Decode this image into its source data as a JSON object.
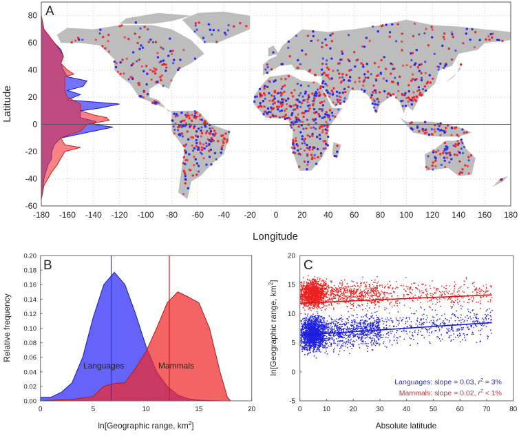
{
  "chart_data": [
    {
      "panel": "A",
      "type": "scatter",
      "xlabel": "Longitude",
      "ylabel": "Latitude",
      "xlim": [
        -180,
        180
      ],
      "ylim": [
        -60,
        90
      ],
      "xticks": [
        -180,
        -160,
        -140,
        -120,
        -100,
        -80,
        -60,
        -40,
        -20,
        0,
        20,
        40,
        60,
        80,
        100,
        120,
        140,
        160,
        180
      ],
      "yticks": [
        -60,
        -40,
        -20,
        0,
        20,
        40,
        60,
        80
      ],
      "grid": true,
      "colors": {
        "land": "#bdbdbd",
        "languages": "#2a2ae8",
        "mammals": "#ee2a2a"
      },
      "latitude_profiles": {
        "languages": [
          [
            80,
            -180
          ],
          [
            70,
            -178
          ],
          [
            60,
            -170
          ],
          [
            55,
            -165
          ],
          [
            50,
            -163
          ],
          [
            45,
            -165
          ],
          [
            40,
            -163
          ],
          [
            35,
            -160
          ],
          [
            32,
            -145
          ],
          [
            28,
            -148
          ],
          [
            25,
            -160
          ],
          [
            22,
            -150
          ],
          [
            18,
            -160
          ],
          [
            15,
            -120
          ],
          [
            12,
            -135
          ],
          [
            10,
            -150
          ],
          [
            5,
            -150
          ],
          [
            2,
            -138
          ],
          [
            0,
            -140
          ],
          [
            -2,
            -125
          ],
          [
            -5,
            -140
          ],
          [
            -8,
            -155
          ],
          [
            -10,
            -165
          ],
          [
            -15,
            -170
          ],
          [
            -20,
            -172
          ],
          [
            -25,
            -172
          ],
          [
            -30,
            -175
          ],
          [
            -40,
            -178
          ],
          [
            -50,
            -179
          ],
          [
            -55,
            -180
          ]
        ],
        "mammals": [
          [
            80,
            -180
          ],
          [
            70,
            -178
          ],
          [
            60,
            -170
          ],
          [
            55,
            -166
          ],
          [
            50,
            -163
          ],
          [
            45,
            -165
          ],
          [
            40,
            -160
          ],
          [
            37,
            -155
          ],
          [
            35,
            -162
          ],
          [
            30,
            -162
          ],
          [
            25,
            -162
          ],
          [
            20,
            -160
          ],
          [
            15,
            -150
          ],
          [
            10,
            -150
          ],
          [
            7,
            -140
          ],
          [
            5,
            -130
          ],
          [
            3,
            -128
          ],
          [
            0,
            -145
          ],
          [
            -5,
            -150
          ],
          [
            -8,
            -160
          ],
          [
            -10,
            -165
          ],
          [
            -15,
            -162
          ],
          [
            -17,
            -150
          ],
          [
            -20,
            -162
          ],
          [
            -25,
            -165
          ],
          [
            -30,
            -168
          ],
          [
            -35,
            -172
          ],
          [
            -40,
            -175
          ],
          [
            -45,
            -178
          ],
          [
            -50,
            -179
          ],
          [
            -55,
            -180
          ]
        ]
      }
    },
    {
      "panel": "B",
      "type": "area",
      "xlabel": "ln[Geographic range, km",
      "xlabel_sup": "2",
      "xlabel_end": "]",
      "ylabel": "Relative frequency",
      "xlim": [
        0,
        20
      ],
      "ylim": [
        0,
        0.2
      ],
      "xticks": [
        0,
        5,
        10,
        15,
        20
      ],
      "yticks": [
        "0.00",
        "0.02",
        "0.04",
        "0.06",
        "0.08",
        "0.10",
        "0.12",
        "0.14",
        "0.16",
        "0.18",
        "0.20"
      ],
      "series": [
        {
          "name": "Languages",
          "color": "#2a2ae8",
          "median": 6.7,
          "x": [
            0,
            1,
            2,
            3,
            4,
            5,
            6,
            7,
            8,
            9,
            10,
            11,
            12,
            13,
            14,
            15,
            17,
            19
          ],
          "y": [
            0.005,
            0.005,
            0.012,
            0.025,
            0.06,
            0.115,
            0.16,
            0.177,
            0.16,
            0.12,
            0.075,
            0.04,
            0.02,
            0.008,
            0.003,
            0.001,
            0,
            0
          ]
        },
        {
          "name": "Mammals",
          "color": "#ee2a2a",
          "median": 12.2,
          "x": [
            0,
            1,
            3,
            5,
            6,
            7,
            8,
            9,
            10,
            11,
            12,
            13,
            14,
            15,
            16,
            17,
            17.7,
            18
          ],
          "y": [
            0,
            0.001,
            0.002,
            0.006,
            0.02,
            0.024,
            0.025,
            0.045,
            0.068,
            0.1,
            0.135,
            0.15,
            0.143,
            0.135,
            0.1,
            0.04,
            0.005,
            0
          ]
        }
      ]
    },
    {
      "panel": "C",
      "type": "scatter",
      "xlabel": "Absolute latitude",
      "ylabel": "ln[Geographic range, km",
      "ylabel_sup": "2",
      "ylabel_end": "]",
      "xlim": [
        0,
        80
      ],
      "ylim": [
        -5,
        20
      ],
      "xticks": [
        0,
        10,
        20,
        30,
        40,
        50,
        60,
        70,
        80
      ],
      "yticks": [
        -5,
        0,
        5,
        10,
        15,
        20
      ],
      "series": [
        {
          "name": "Languages",
          "color": "#2a2ae8",
          "fit": {
            "slope": 0.03,
            "intercept": 6.3,
            "x": [
              0,
              72
            ]
          }
        },
        {
          "name": "Mammals",
          "color": "#ee2a2a",
          "fit": {
            "slope": 0.02,
            "intercept": 11.8,
            "x": [
              0,
              72
            ]
          }
        }
      ],
      "annotations": {
        "languages": {
          "text": "Languages: slope = 0.03, ",
          "r": "r",
          "sup": "2",
          "end": " = 3%"
        },
        "mammals": {
          "text": "Mammals: slope = 0.02, ",
          "r": "r",
          "sup": "2",
          "end": " < 1%"
        }
      }
    }
  ],
  "labels": {
    "languages": "Languages",
    "mammals": "Mammals"
  },
  "panels": {
    "a": "A",
    "b": "B",
    "c": "C"
  }
}
